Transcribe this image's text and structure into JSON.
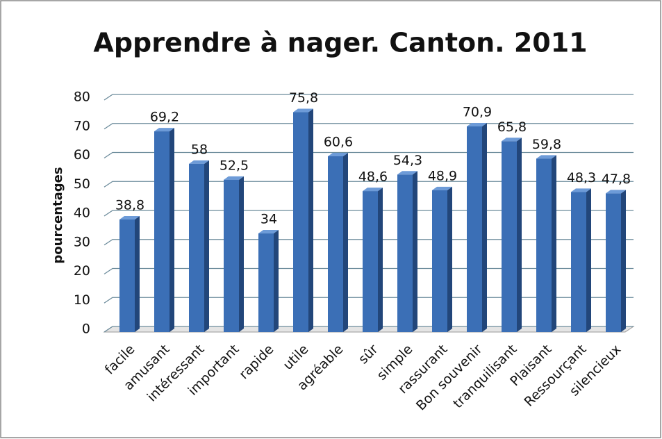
{
  "chart_data": {
    "type": "bar3d",
    "title": "Apprendre à nager. Canton. 2011",
    "y_label": "pourcentages",
    "categories": [
      "facile",
      "amusant",
      "intéressant",
      "important",
      "rapide",
      "utile",
      "agréable",
      "sûr",
      "simple",
      "rassurant",
      "Bon souvenir",
      "tranquilisant",
      "Plaisant",
      "Ressourçant",
      "silencieux"
    ],
    "values": [
      38.8,
      69.2,
      58,
      52.5,
      34,
      75.8,
      60.6,
      48.6,
      54.3,
      48.9,
      70.9,
      65.8,
      59.8,
      48.3,
      47.8
    ],
    "value_labels": [
      "38,8",
      "69,2",
      "58",
      "52,5",
      "34",
      "75,8",
      "60,6",
      "48,6",
      "54,3",
      "48,9",
      "70,9",
      "65,8",
      "59,8",
      "48,3",
      "47,8"
    ],
    "color": "#3b6fb6",
    "ylim": [
      0,
      80
    ],
    "yticks": [
      0,
      10,
      20,
      30,
      40,
      50,
      60,
      70,
      80
    ],
    "grid": true
  }
}
